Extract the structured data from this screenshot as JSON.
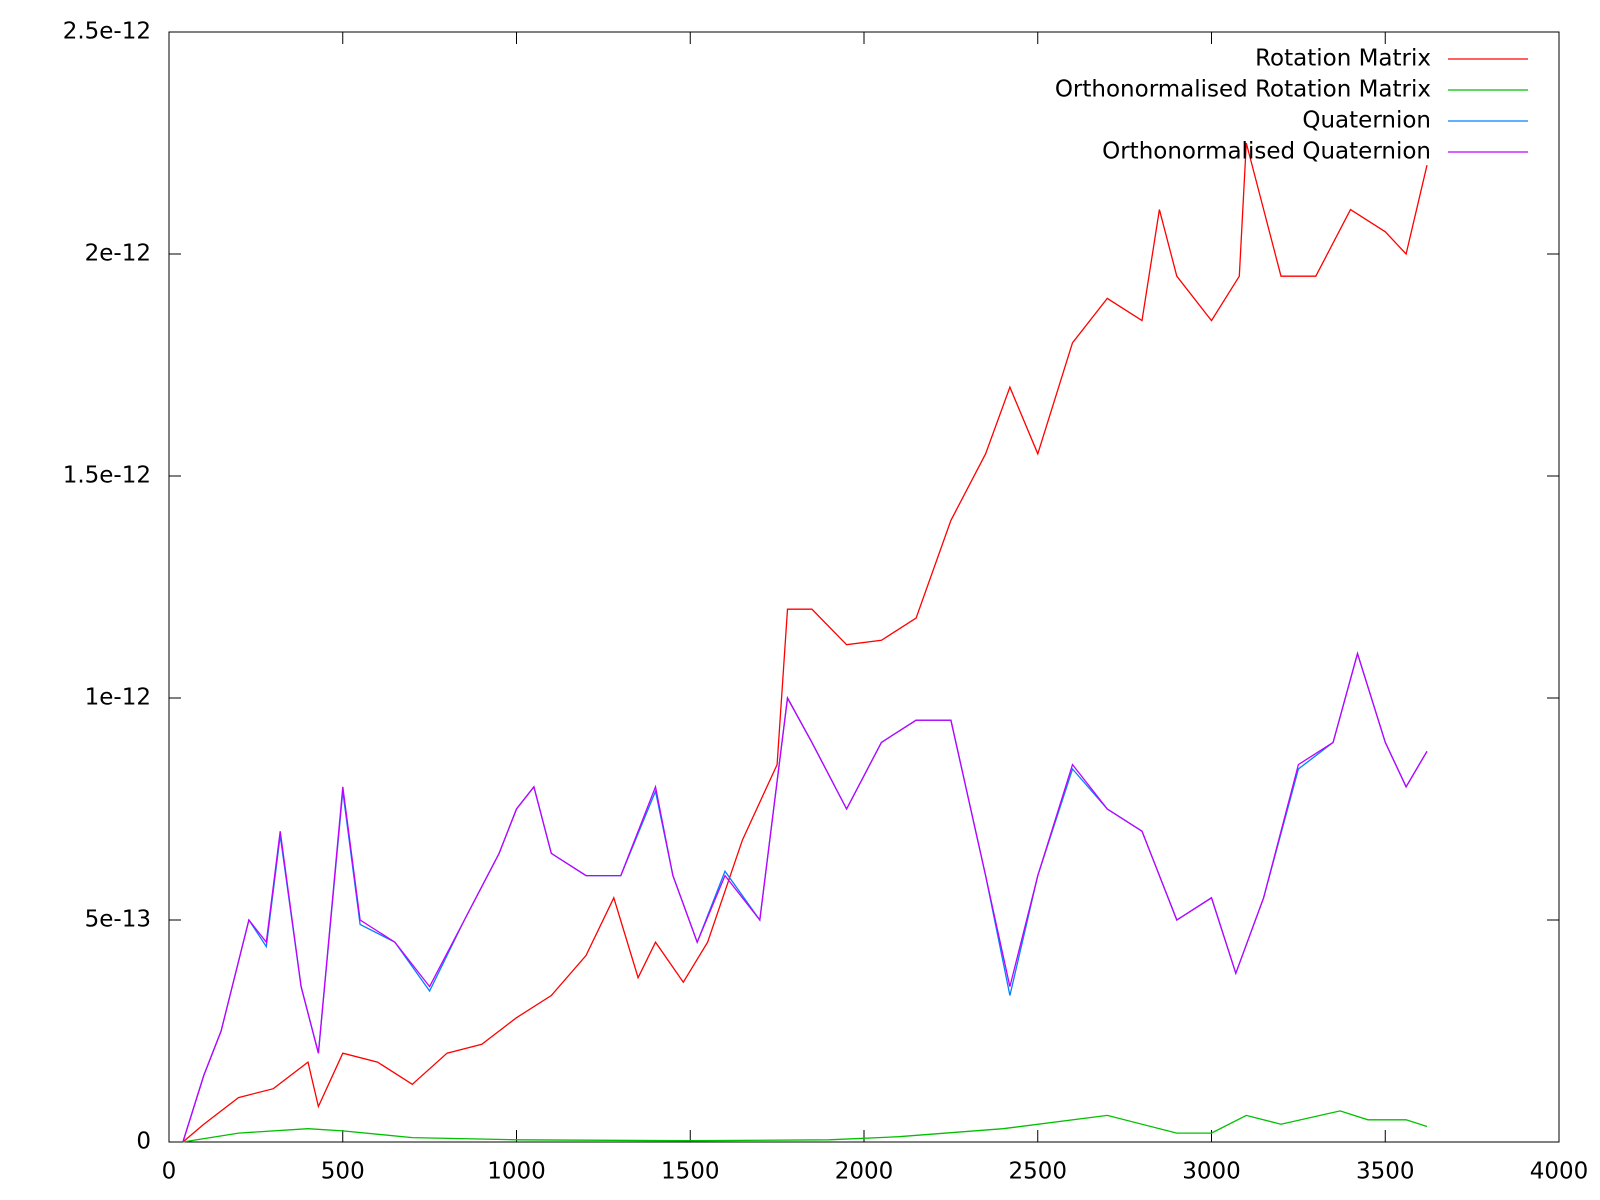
{
  "chart_data": {
    "type": "line",
    "xlim": [
      0,
      4000
    ],
    "xticks": [
      0,
      500,
      1000,
      1500,
      2000,
      2500,
      3000,
      3500,
      4000
    ],
    "ylim": [
      0,
      2.5e-12
    ],
    "yticks": [
      0,
      5e-13,
      1e-12,
      1.5e-12,
      2e-12,
      2.5e-12
    ],
    "legend": "top-right",
    "series": [
      {
        "name": "Rotation Matrix",
        "color": "#ff0000",
        "x": [
          40,
          100,
          200,
          300,
          400,
          430,
          500,
          600,
          700,
          800,
          900,
          1000,
          1100,
          1200,
          1280,
          1350,
          1400,
          1480,
          1550,
          1650,
          1750,
          1780,
          1850,
          1950,
          2050,
          2150,
          2250,
          2350,
          2420,
          2500,
          2600,
          2700,
          2800,
          2850,
          2900,
          3000,
          3080,
          3100,
          3200,
          3300,
          3400,
          3500,
          3560,
          3620
        ],
        "values": [
          0,
          4e-14,
          1e-13,
          1.2e-13,
          1.8e-13,
          8e-14,
          2e-13,
          1.8e-13,
          1.3e-13,
          2e-13,
          2.2e-13,
          2.8e-13,
          3.3e-13,
          4.2e-13,
          5.5e-13,
          3.7e-13,
          4.5e-13,
          3.6e-13,
          4.5e-13,
          6.8e-13,
          8.5e-13,
          1.2e-12,
          1.2e-12,
          1.12e-12,
          1.13e-12,
          1.18e-12,
          1.4e-12,
          1.55e-12,
          1.7e-12,
          1.55e-12,
          1.8e-12,
          1.9e-12,
          1.85e-12,
          2.1e-12,
          1.95e-12,
          1.85e-12,
          1.95e-12,
          2.25e-12,
          1.95e-12,
          1.95e-12,
          2.1e-12,
          2.05e-12,
          2e-12,
          2.2e-12
        ]
      },
      {
        "name": "Orthonormalised Rotation Matrix",
        "color": "#00c000",
        "x": [
          40,
          200,
          400,
          500,
          700,
          1000,
          1500,
          1900,
          2100,
          2400,
          2700,
          2900,
          3000,
          3100,
          3200,
          3370,
          3450,
          3560,
          3620
        ],
        "values": [
          0,
          2e-14,
          3e-14,
          2.5e-14,
          1e-14,
          5e-15,
          3e-15,
          5e-15,
          1.2e-14,
          3e-14,
          6e-14,
          2e-14,
          2e-14,
          6e-14,
          4e-14,
          7e-14,
          5e-14,
          5e-14,
          3.5e-14
        ]
      },
      {
        "name": "Quaternion",
        "color": "#0080ff",
        "x": [
          40,
          100,
          150,
          230,
          280,
          320,
          380,
          430,
          500,
          550,
          650,
          750,
          850,
          950,
          1000,
          1050,
          1100,
          1200,
          1300,
          1400,
          1450,
          1520,
          1600,
          1700,
          1780,
          1850,
          1950,
          2050,
          2150,
          2250,
          2350,
          2420,
          2500,
          2600,
          2700,
          2800,
          2900,
          3000,
          3070,
          3150,
          3250,
          3350,
          3420,
          3500,
          3560,
          3620
        ],
        "values": [
          0,
          1.5e-13,
          2.5e-13,
          5e-13,
          4.4e-13,
          6.9e-13,
          3.5e-13,
          2e-13,
          7.9e-13,
          4.9e-13,
          4.5e-13,
          3.4e-13,
          5e-13,
          6.5e-13,
          7.5e-13,
          8e-13,
          6.5e-13,
          6e-13,
          6e-13,
          7.9e-13,
          6e-13,
          4.5e-13,
          6.1e-13,
          5e-13,
          1e-12,
          9e-13,
          7.5e-13,
          9e-13,
          9.5e-13,
          9.5e-13,
          6e-13,
          3.3e-13,
          6e-13,
          8.4e-13,
          7.5e-13,
          7e-13,
          5e-13,
          5.5e-13,
          3.8e-13,
          5.5e-13,
          8.4e-13,
          9e-13,
          1.1e-12,
          9e-13,
          8e-13,
          8.8e-13
        ]
      },
      {
        "name": "Orthonormalised Quaternion",
        "color": "#c000ff",
        "x": [
          40,
          100,
          150,
          230,
          280,
          320,
          380,
          430,
          500,
          550,
          650,
          750,
          850,
          950,
          1000,
          1050,
          1100,
          1200,
          1300,
          1400,
          1450,
          1520,
          1600,
          1700,
          1780,
          1850,
          1950,
          2050,
          2150,
          2250,
          2350,
          2420,
          2500,
          2600,
          2700,
          2800,
          2900,
          3000,
          3070,
          3150,
          3250,
          3350,
          3420,
          3500,
          3560,
          3620
        ],
        "values": [
          0,
          1.5e-13,
          2.5e-13,
          5e-13,
          4.5e-13,
          7e-13,
          3.5e-13,
          2e-13,
          8e-13,
          5e-13,
          4.5e-13,
          3.5e-13,
          5e-13,
          6.5e-13,
          7.5e-13,
          8e-13,
          6.5e-13,
          6e-13,
          6e-13,
          8e-13,
          6e-13,
          4.5e-13,
          6e-13,
          5e-13,
          1e-12,
          9e-13,
          7.5e-13,
          9e-13,
          9.5e-13,
          9.5e-13,
          6e-13,
          3.5e-13,
          6e-13,
          8.5e-13,
          7.5e-13,
          7e-13,
          5e-13,
          5.5e-13,
          3.8e-13,
          5.5e-13,
          8.5e-13,
          9e-13,
          1.1e-12,
          9e-13,
          8e-13,
          8.8e-13
        ]
      }
    ]
  }
}
